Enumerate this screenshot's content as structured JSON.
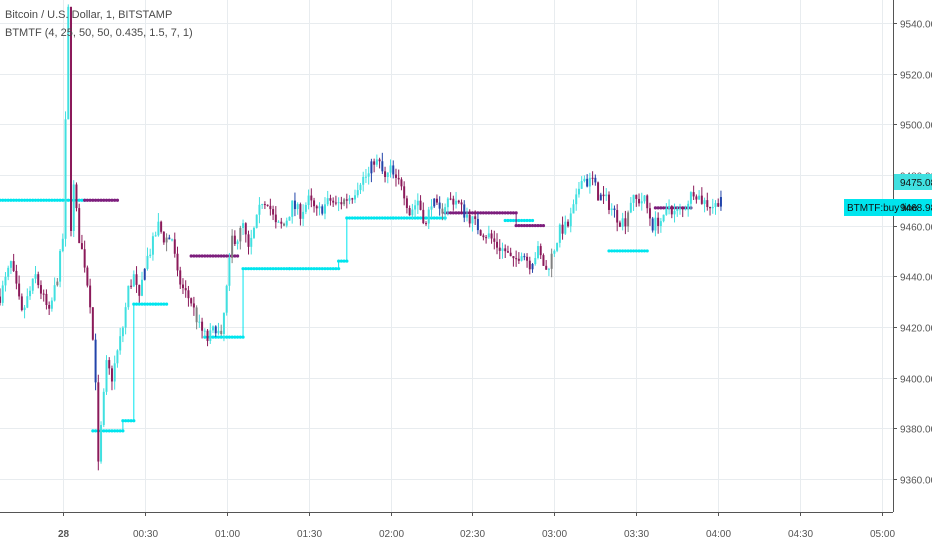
{
  "legend": {
    "title": "Bitcoin / U.S. Dollar, 1, BITSTAMP",
    "indicator": "BTMTF (4, 25, 50, 50, 0.435, 1.5, 7, 1)"
  },
  "badges": {
    "price": "9475.08",
    "buy_line_label": "BTMTF:buy line",
    "buy_line_value": "9468.98"
  },
  "colors": {
    "up": "#40e0e0",
    "down": "#8b1a5a",
    "neutral": "#808080",
    "blue": "#2244aa",
    "buy_line": "#00e5ee",
    "sell_line": "#7d1e7d",
    "grid": "#e8ecef",
    "axis": "#555555"
  },
  "chart_data": {
    "type": "candlestick",
    "title": "Bitcoin / U.S. Dollar, 1, BITSTAMP",
    "x_unit": "minutes after 00:00",
    "ylim": [
      9347,
      9549
    ],
    "xlim": [
      -23,
      304
    ],
    "y_ticks": [
      9360,
      9380,
      9400,
      9420,
      9440,
      9460,
      9480,
      9500,
      9520,
      9540
    ],
    "y_tick_labels": [
      "9360.00",
      "9380.00",
      "9400.00",
      "9420.00",
      "9440.00",
      "9460.00",
      "9480.00",
      "9500.00",
      "9520.00",
      "9540.00"
    ],
    "x_ticks": [
      0,
      30,
      60,
      90,
      120,
      150,
      180,
      210,
      240,
      270,
      300
    ],
    "x_tick_labels": [
      "28",
      "00:30",
      "01:00",
      "01:30",
      "02:00",
      "02:30",
      "03:00",
      "03:30",
      "04:00",
      "04:30",
      "05:00"
    ],
    "anchors": [
      [
        -23,
        9432
      ],
      [
        -19,
        9445
      ],
      [
        -15,
        9425
      ],
      [
        -10,
        9440
      ],
      [
        -5,
        9425
      ],
      [
        -2,
        9440
      ],
      [
        0,
        9455
      ],
      [
        2,
        9545
      ],
      [
        3,
        9460
      ],
      [
        4,
        9475
      ],
      [
        6,
        9455
      ],
      [
        8,
        9445
      ],
      [
        10,
        9430
      ],
      [
        12,
        9400
      ],
      [
        13,
        9365
      ],
      [
        14,
        9380
      ],
      [
        16,
        9405
      ],
      [
        18,
        9400
      ],
      [
        20,
        9410
      ],
      [
        22,
        9420
      ],
      [
        24,
        9435
      ],
      [
        26,
        9440
      ],
      [
        28,
        9430
      ],
      [
        30,
        9445
      ],
      [
        32,
        9450
      ],
      [
        35,
        9460
      ],
      [
        37,
        9455
      ],
      [
        40,
        9455
      ],
      [
        42,
        9440
      ],
      [
        44,
        9435
      ],
      [
        47,
        9430
      ],
      [
        50,
        9420
      ],
      [
        53,
        9415
      ],
      [
        56,
        9420
      ],
      [
        58,
        9415
      ],
      [
        60,
        9435
      ],
      [
        62,
        9455
      ],
      [
        64,
        9455
      ],
      [
        66,
        9460
      ],
      [
        68,
        9450
      ],
      [
        70,
        9458
      ],
      [
        73,
        9470
      ],
      [
        75,
        9470
      ],
      [
        78,
        9460
      ],
      [
        81,
        9460
      ],
      [
        84,
        9468
      ],
      [
        87,
        9465
      ],
      [
        90,
        9470
      ],
      [
        93,
        9465
      ],
      [
        95,
        9467
      ],
      [
        98,
        9470
      ],
      [
        100,
        9468
      ],
      [
        103,
        9470
      ],
      [
        106,
        9472
      ],
      [
        109,
        9478
      ],
      [
        112,
        9480
      ],
      [
        114,
        9486
      ],
      [
        116,
        9484
      ],
      [
        118,
        9478
      ],
      [
        120,
        9482
      ],
      [
        122,
        9477
      ],
      [
        124,
        9477
      ],
      [
        127,
        9465
      ],
      [
        130,
        9470
      ],
      [
        133,
        9460
      ],
      [
        135,
        9470
      ],
      [
        138,
        9465
      ],
      [
        141,
        9470
      ],
      [
        144,
        9470
      ],
      [
        147,
        9465
      ],
      [
        150,
        9462
      ],
      [
        153,
        9458
      ],
      [
        156,
        9456
      ],
      [
        159,
        9452
      ],
      [
        162,
        9450
      ],
      [
        165,
        9445
      ],
      [
        168,
        9450
      ],
      [
        171,
        9445
      ],
      [
        174,
        9450
      ],
      [
        177,
        9442
      ],
      [
        179,
        9448
      ],
      [
        182,
        9458
      ],
      [
        185,
        9460
      ],
      [
        188,
        9470
      ],
      [
        190,
        9480
      ],
      [
        192,
        9477
      ],
      [
        194,
        9478
      ],
      [
        196,
        9472
      ],
      [
        199,
        9470
      ],
      [
        202,
        9465
      ],
      [
        204,
        9462
      ],
      [
        206,
        9462
      ],
      [
        208,
        9470
      ],
      [
        210,
        9470
      ],
      [
        213,
        9470
      ],
      [
        216,
        9460
      ],
      [
        218,
        9462
      ],
      [
        220,
        9462
      ],
      [
        222,
        9468
      ],
      [
        224,
        9465
      ],
      [
        227,
        9466
      ],
      [
        229,
        9470
      ],
      [
        231,
        9474
      ],
      [
        234,
        9470
      ],
      [
        237,
        9468
      ],
      [
        239,
        9468
      ],
      [
        241,
        9472
      ]
    ],
    "series": [
      {
        "name": "BTMTF:buy line",
        "role": "buy",
        "steps": [
          {
            "x0": -23,
            "x1": 8,
            "y": 9470
          },
          {
            "x0": 11,
            "x1": 22,
            "y": 9379
          },
          {
            "x0": 22,
            "x1": 26,
            "y": 9383
          },
          {
            "x0": 26,
            "x1": 34,
            "y": 9429
          },
          {
            "x0": 34,
            "x1": 38,
            "y": 9429
          },
          {
            "x0": 52,
            "x1": 66,
            "y": 9416
          },
          {
            "x0": 66,
            "x1": 83,
            "y": 9443
          },
          {
            "x0": 83,
            "x1": 101,
            "y": 9443
          },
          {
            "x0": 101,
            "x1": 104,
            "y": 9446
          },
          {
            "x0": 104,
            "x1": 121,
            "y": 9463
          },
          {
            "x0": 121,
            "x1": 140,
            "y": 9463
          },
          {
            "x0": 162,
            "x1": 172,
            "y": 9462
          },
          {
            "x0": 200,
            "x1": 214,
            "y": 9450
          }
        ]
      },
      {
        "name": "",
        "role": "sell",
        "steps": [
          {
            "x0": 8,
            "x1": 20,
            "y": 9470
          },
          {
            "x0": 47,
            "x1": 64,
            "y": 9448
          },
          {
            "x0": 140,
            "x1": 166,
            "y": 9465
          },
          {
            "x0": 166,
            "x1": 176,
            "y": 9460
          },
          {
            "x0": 217,
            "x1": 230,
            "y": 9467
          }
        ]
      }
    ]
  }
}
